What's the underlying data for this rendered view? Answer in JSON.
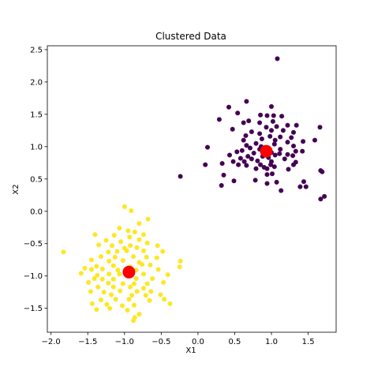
{
  "chart_data": {
    "type": "scatter",
    "title": "Clustered Data",
    "xlabel": "X1",
    "ylabel": "X2",
    "xlim": [
      -2.05,
      1.88
    ],
    "ylim": [
      -1.87,
      2.56
    ],
    "xticks": [
      -2.0,
      -1.5,
      -1.0,
      -0.5,
      0.0,
      0.5,
      1.0,
      1.5
    ],
    "xtick_labels": [
      "−2.0",
      "−1.5",
      "−1.0",
      "−0.5",
      "0.0",
      "0.5",
      "1.0",
      "1.5"
    ],
    "yticks": [
      -1.5,
      -1.0,
      -0.5,
      0.0,
      0.5,
      1.0,
      1.5,
      2.0,
      2.5
    ],
    "ytick_labels": [
      "−1.5",
      "−1.0",
      "−0.5",
      "0.0",
      "0.5",
      "1.0",
      "1.5",
      "2.0",
      "2.5"
    ],
    "grid": false,
    "colors": {
      "cluster_purple": "#440154",
      "cluster_yellow": "#fde725",
      "centroid": "#ff0000",
      "frame": "#000000"
    },
    "series": [
      {
        "color_key": "cluster_purple",
        "points": [
          [
            1.08,
            2.36
          ],
          [
            0.66,
            1.7
          ],
          [
            0.42,
            1.61
          ],
          [
            1.0,
            1.62
          ],
          [
            0.54,
            1.52
          ],
          [
            0.85,
            1.49
          ],
          [
            0.94,
            1.48
          ],
          [
            1.14,
            1.47
          ],
          [
            0.29,
            1.42
          ],
          [
            0.69,
            1.4
          ],
          [
            1.03,
            1.48
          ],
          [
            0.62,
            1.37
          ],
          [
            0.84,
            1.37
          ],
          [
            1.02,
            1.39
          ],
          [
            1.22,
            1.33
          ],
          [
            1.34,
            1.33
          ],
          [
            0.93,
            1.3
          ],
          [
            1.07,
            1.31
          ],
          [
            1.16,
            1.25
          ],
          [
            1.66,
            1.3
          ],
          [
            0.47,
            1.27
          ],
          [
            0.73,
            1.23
          ],
          [
            1.0,
            1.25
          ],
          [
            0.84,
            1.2
          ],
          [
            1.3,
            1.22
          ],
          [
            0.98,
            1.16
          ],
          [
            1.12,
            1.15
          ],
          [
            1.27,
            1.14
          ],
          [
            1.59,
            1.1
          ],
          [
            0.65,
            1.17
          ],
          [
            0.62,
            1.1
          ],
          [
            0.87,
            1.12
          ],
          [
            1.05,
            1.1
          ],
          [
            1.22,
            1.07
          ],
          [
            1.43,
            1.08
          ],
          [
            0.79,
            1.05
          ],
          [
            0.66,
            1.02
          ],
          [
            0.86,
            1.0
          ],
          [
            1.04,
            1.04
          ],
          [
            1.3,
            1.01
          ],
          [
            0.13,
            0.99
          ],
          [
            0.71,
            0.98
          ],
          [
            0.6,
            0.94
          ],
          [
            0.84,
            0.96
          ],
          [
            1.12,
            0.96
          ],
          [
            1.33,
            0.93
          ],
          [
            1.42,
            0.93
          ],
          [
            0.53,
            0.92
          ],
          [
            0.76,
            0.9
          ],
          [
            1.0,
            0.91
          ],
          [
            1.11,
            0.89
          ],
          [
            1.22,
            0.88
          ],
          [
            0.43,
            0.87
          ],
          [
            0.68,
            0.85
          ],
          [
            0.88,
            0.85
          ],
          [
            1.05,
            0.87
          ],
          [
            1.29,
            0.86
          ],
          [
            0.58,
            0.82
          ],
          [
            0.73,
            0.81
          ],
          [
            0.96,
            0.83
          ],
          [
            1.18,
            0.81
          ],
          [
            0.48,
            0.77
          ],
          [
            0.63,
            0.77
          ],
          [
            0.81,
            0.78
          ],
          [
            1.0,
            0.77
          ],
          [
            1.33,
            0.76
          ],
          [
            0.33,
            0.74
          ],
          [
            0.55,
            0.72
          ],
          [
            0.66,
            0.71
          ],
          [
            0.85,
            0.72
          ],
          [
            0.99,
            0.72
          ],
          [
            1.3,
            0.72
          ],
          [
            0.1,
            0.72
          ],
          [
            0.9,
            0.68
          ],
          [
            1.04,
            0.69
          ],
          [
            0.79,
            0.66
          ],
          [
            0.94,
            0.66
          ],
          [
            1.23,
            0.65
          ],
          [
            1.67,
            0.63
          ],
          [
            1.69,
            0.61
          ],
          [
            0.35,
            0.56
          ],
          [
            -0.24,
            0.54
          ],
          [
            0.94,
            0.57
          ],
          [
            1.01,
            0.58
          ],
          [
            0.49,
            0.47
          ],
          [
            0.78,
            0.48
          ],
          [
            1.07,
            0.45
          ],
          [
            0.94,
            0.43
          ],
          [
            1.44,
            0.46
          ],
          [
            1.39,
            0.38
          ],
          [
            0.32,
            0.4
          ],
          [
            1.13,
            0.32
          ],
          [
            1.47,
            0.38
          ],
          [
            1.72,
            0.23
          ],
          [
            1.67,
            0.19
          ]
        ]
      },
      {
        "color_key": "cluster_yellow",
        "points": [
          [
            -1.0,
            0.07
          ],
          [
            -0.91,
            0.01
          ],
          [
            -0.68,
            -0.12
          ],
          [
            -0.8,
            -0.19
          ],
          [
            -1.07,
            -0.26
          ],
          [
            -0.95,
            -0.3
          ],
          [
            -0.86,
            -0.32
          ],
          [
            -0.74,
            -0.36
          ],
          [
            -1.4,
            -0.36
          ],
          [
            -1.14,
            -0.37
          ],
          [
            -0.93,
            -0.4
          ],
          [
            -0.8,
            -0.44
          ],
          [
            -1.25,
            -0.45
          ],
          [
            -1.05,
            -0.47
          ],
          [
            -0.69,
            -0.49
          ],
          [
            -1.35,
            -0.52
          ],
          [
            -1.17,
            -0.53
          ],
          [
            -0.92,
            -0.53
          ],
          [
            -0.55,
            -0.53
          ],
          [
            -1.0,
            -0.57
          ],
          [
            -0.83,
            -0.56
          ],
          [
            -1.83,
            -0.63
          ],
          [
            -1.22,
            -0.63
          ],
          [
            -1.1,
            -0.62
          ],
          [
            -0.97,
            -0.61
          ],
          [
            -0.74,
            -0.61
          ],
          [
            -0.48,
            -0.62
          ],
          [
            -1.32,
            -0.7
          ],
          [
            -1.13,
            -0.71
          ],
          [
            -0.88,
            -0.7
          ],
          [
            -0.7,
            -0.71
          ],
          [
            -0.56,
            -0.72
          ],
          [
            -1.45,
            -0.75
          ],
          [
            -1.21,
            -0.77
          ],
          [
            -1.02,
            -0.76
          ],
          [
            -0.8,
            -0.79
          ],
          [
            -0.24,
            -0.77
          ],
          [
            -1.38,
            -0.85
          ],
          [
            -1.15,
            -0.84
          ],
          [
            -0.92,
            -0.86
          ],
          [
            -0.76,
            -0.82
          ],
          [
            -0.65,
            -0.83
          ],
          [
            -0.25,
            -0.86
          ],
          [
            -1.54,
            -0.88
          ],
          [
            -1.45,
            -0.9
          ],
          [
            -1.3,
            -0.89
          ],
          [
            -1.09,
            -0.91
          ],
          [
            -0.84,
            -0.91
          ],
          [
            -0.54,
            -0.9
          ],
          [
            -1.59,
            -0.96
          ],
          [
            -1.37,
            -0.99
          ],
          [
            -1.21,
            -0.97
          ],
          [
            -1.07,
            -0.97
          ],
          [
            -0.9,
            -0.99
          ],
          [
            -0.74,
            -0.97
          ],
          [
            -0.41,
            -0.98
          ],
          [
            -1.41,
            -1.04
          ],
          [
            -1.3,
            -1.05
          ],
          [
            -1.15,
            -1.05
          ],
          [
            -0.84,
            -1.04
          ],
          [
            -0.62,
            -1.04
          ],
          [
            -1.49,
            -1.1
          ],
          [
            -1.22,
            -1.11
          ],
          [
            -1.02,
            -1.12
          ],
          [
            -0.87,
            -1.12
          ],
          [
            -0.69,
            -1.12
          ],
          [
            -0.47,
            -1.1
          ],
          [
            -1.36,
            -1.17
          ],
          [
            -1.15,
            -1.17
          ],
          [
            -0.92,
            -1.17
          ],
          [
            -0.74,
            -1.19
          ],
          [
            -1.46,
            -1.24
          ],
          [
            -1.28,
            -1.25
          ],
          [
            -1.06,
            -1.23
          ],
          [
            -0.83,
            -1.24
          ],
          [
            -0.64,
            -1.24
          ],
          [
            -1.18,
            -1.29
          ],
          [
            -0.9,
            -1.3
          ],
          [
            -0.71,
            -1.3
          ],
          [
            -0.51,
            -1.29
          ],
          [
            -1.32,
            -1.37
          ],
          [
            -1.12,
            -1.36
          ],
          [
            -0.94,
            -1.36
          ],
          [
            -0.66,
            -1.38
          ],
          [
            -0.46,
            -1.36
          ],
          [
            -1.44,
            -1.43
          ],
          [
            -1.24,
            -1.44
          ],
          [
            -1.03,
            -1.46
          ],
          [
            -0.87,
            -1.45
          ],
          [
            -0.38,
            -1.43
          ],
          [
            -1.2,
            -1.5
          ],
          [
            -1.38,
            -1.52
          ],
          [
            -0.96,
            -1.53
          ],
          [
            -0.8,
            -1.59
          ],
          [
            -0.86,
            -1.64
          ],
          [
            -0.88,
            -1.69
          ]
        ]
      },
      {
        "color_key": "centroid",
        "role": "centroid",
        "points": [
          [
            0.93,
            0.93
          ],
          [
            -0.94,
            -0.94
          ]
        ]
      }
    ]
  }
}
